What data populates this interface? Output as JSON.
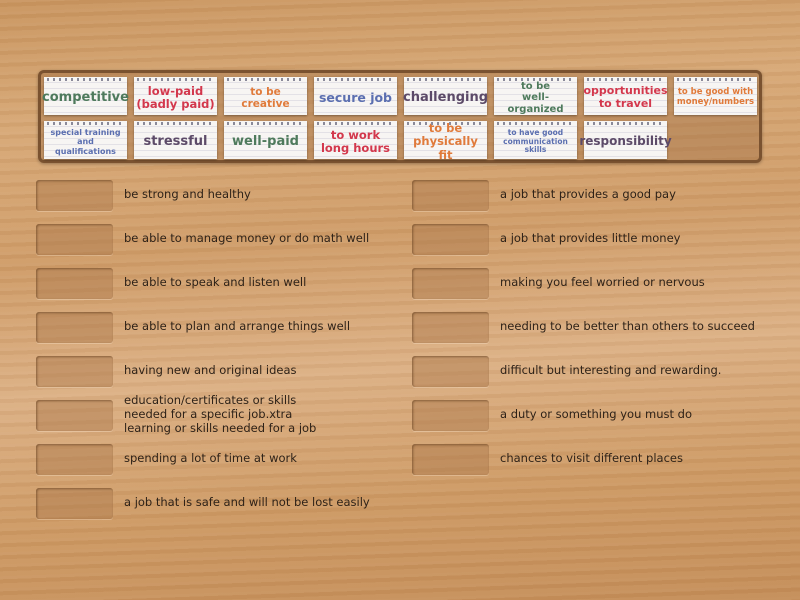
{
  "colors": {
    "green": "#4e7a5c",
    "red": "#d3374c",
    "orange": "#e07a3a",
    "blue": "#5b6fb0",
    "purple": "#5c4a68"
  },
  "cards": [
    {
      "label": "competitive",
      "color": "#4e7a5c",
      "size": 13
    },
    {
      "label": "low-paid\n(badly paid)",
      "color": "#d3374c",
      "size": 11.5
    },
    {
      "label": "to be creative",
      "color": "#e07a3a",
      "size": 10.5
    },
    {
      "label": "secure job",
      "color": "#5b6fb0",
      "size": 12.5
    },
    {
      "label": "challenging",
      "color": "#5c4a68",
      "size": 13
    },
    {
      "label": "to be\nwell-organized",
      "color": "#4e7a5c",
      "size": 10
    },
    {
      "label": "opportunities\nto travel",
      "color": "#d3374c",
      "size": 11
    },
    {
      "label": "to be good with\nmoney/numbers",
      "color": "#e07a3a",
      "size": 8.5
    },
    {
      "label": "special training\nand qualifications",
      "color": "#5b6fb0",
      "size": 8
    },
    {
      "label": "stressful",
      "color": "#5c4a68",
      "size": 13
    },
    {
      "label": "well-paid",
      "color": "#4e7a5c",
      "size": 13
    },
    {
      "label": "to work\nlong hours",
      "color": "#d3374c",
      "size": 11.5
    },
    {
      "label": "to be\nphysically fit",
      "color": "#e07a3a",
      "size": 11.5
    },
    {
      "label": "to have good\ncommunication\nskills",
      "color": "#5b6fb0",
      "size": 7.5
    },
    {
      "label": "responsibility",
      "color": "#5c4a68",
      "size": 12
    }
  ],
  "left_definitions": [
    "be strong and healthy",
    "be able to manage money or do math well",
    "be able to speak and listen well",
    "be able to plan and arrange things well",
    "having new and original ideas",
    "education/certificates or skills\nneeded for a specific job.xtra\nlearning or skills needed for a job",
    "spending a lot of time at work",
    "a job that is safe and will not be lost easily"
  ],
  "right_definitions": [
    "a job that provides a good pay",
    "a job that provides little money",
    "making you feel worried or nervous",
    "needing to be better than others to succeed",
    "difficult but interesting and rewarding.",
    "a duty or something you must do",
    "chances to visit different places"
  ]
}
